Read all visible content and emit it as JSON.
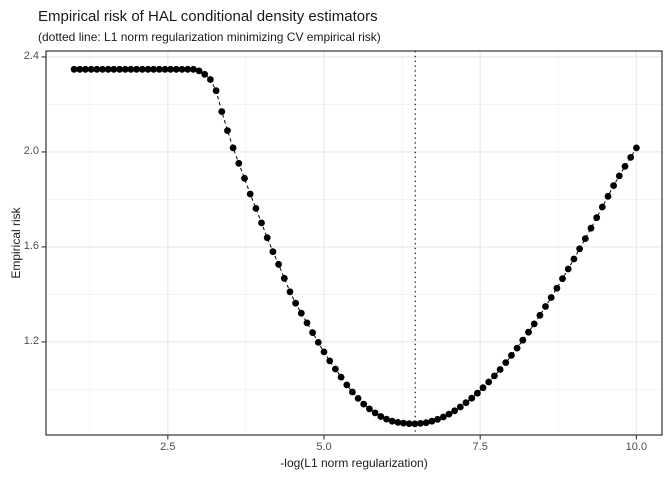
{
  "chart_data": {
    "type": "scatter",
    "title": "Empirical risk of HAL conditional density estimators",
    "subtitle": "(dotted line: L1 norm regularization minimizing CV empirical risk)",
    "xlabel": "-log(L1 norm regularization)",
    "ylabel": "Empirical risk",
    "xlim": [
      0.55,
      10.41
    ],
    "ylim": [
      0.808,
      2.425
    ],
    "x_ticks": [
      2.5,
      5.0,
      7.5,
      10.0
    ],
    "x_tick_labels": [
      "2.5",
      "5.0",
      "7.5",
      "10.0"
    ],
    "y_ticks": [
      1.2,
      1.6,
      2.0,
      2.4
    ],
    "y_tick_labels": [
      "1.2",
      "1.6",
      "2.0",
      "2.4"
    ],
    "x_minor_ticks": [
      1.25,
      3.75,
      6.25,
      8.75
    ],
    "y_minor_ticks": [
      1.0,
      1.4,
      1.8,
      2.2
    ],
    "grid": true,
    "legend_position": "none",
    "vline_x": 6.46,
    "vline_style": "dotted",
    "line_style": "dashed",
    "marker": "filled-circle",
    "colors": {
      "background": "#ffffff",
      "grid_major": "#e8e8e8",
      "grid_minor": "#f3f3f3",
      "panel_border": "#333333",
      "point": "#000000",
      "axis_text": "#4d4d4d",
      "text": "#1a1a1a"
    },
    "series": [
      {
        "name": "empirical risk",
        "x": [
          1,
          1.091,
          1.182,
          1.273,
          1.364,
          1.455,
          1.545,
          1.636,
          1.727,
          1.818,
          1.909,
          2,
          2.091,
          2.182,
          2.273,
          2.364,
          2.455,
          2.545,
          2.636,
          2.727,
          2.818,
          2.909,
          3,
          3.091,
          3.182,
          3.273,
          3.364,
          3.455,
          3.545,
          3.636,
          3.727,
          3.818,
          3.909,
          4,
          4.091,
          4.182,
          4.273,
          4.364,
          4.455,
          4.545,
          4.636,
          4.727,
          4.818,
          4.909,
          5,
          5.091,
          5.182,
          5.273,
          5.364,
          5.455,
          5.545,
          5.636,
          5.727,
          5.818,
          5.909,
          6,
          6.091,
          6.182,
          6.273,
          6.364,
          6.455,
          6.545,
          6.636,
          6.727,
          6.818,
          6.909,
          7,
          7.091,
          7.182,
          7.273,
          7.364,
          7.455,
          7.545,
          7.636,
          7.727,
          7.818,
          7.909,
          8,
          8.091,
          8.182,
          8.273,
          8.364,
          8.455,
          8.545,
          8.636,
          8.727,
          8.818,
          8.909,
          9,
          9.091,
          9.182,
          9.273,
          9.364,
          9.455,
          9.545,
          9.636,
          9.727,
          9.818,
          9.909,
          10
        ],
        "y": [
          2.348,
          2.348,
          2.348,
          2.348,
          2.348,
          2.348,
          2.348,
          2.348,
          2.348,
          2.348,
          2.348,
          2.348,
          2.348,
          2.348,
          2.348,
          2.348,
          2.348,
          2.348,
          2.348,
          2.348,
          2.348,
          2.348,
          2.341,
          2.327,
          2.305,
          2.258,
          2.17,
          2.09,
          2.017,
          1.952,
          1.889,
          1.823,
          1.762,
          1.701,
          1.639,
          1.58,
          1.527,
          1.468,
          1.411,
          1.363,
          1.321,
          1.28,
          1.239,
          1.198,
          1.158,
          1.12,
          1.086,
          1.052,
          1.019,
          0.989,
          0.962,
          0.938,
          0.918,
          0.901,
          0.886,
          0.875,
          0.866,
          0.861,
          0.858,
          0.856,
          0.855,
          0.857,
          0.86,
          0.866,
          0.874,
          0.884,
          0.896,
          0.91,
          0.926,
          0.944,
          0.963,
          0.984,
          1.007,
          1.031,
          1.057,
          1.084,
          1.113,
          1.143,
          1.174,
          1.207,
          1.241,
          1.276,
          1.312,
          1.349,
          1.387,
          1.426,
          1.466,
          1.507,
          1.549,
          1.592,
          1.635,
          1.679,
          1.723,
          1.768,
          1.813,
          1.858,
          1.899,
          1.939,
          1.977,
          2.017
        ]
      }
    ]
  }
}
